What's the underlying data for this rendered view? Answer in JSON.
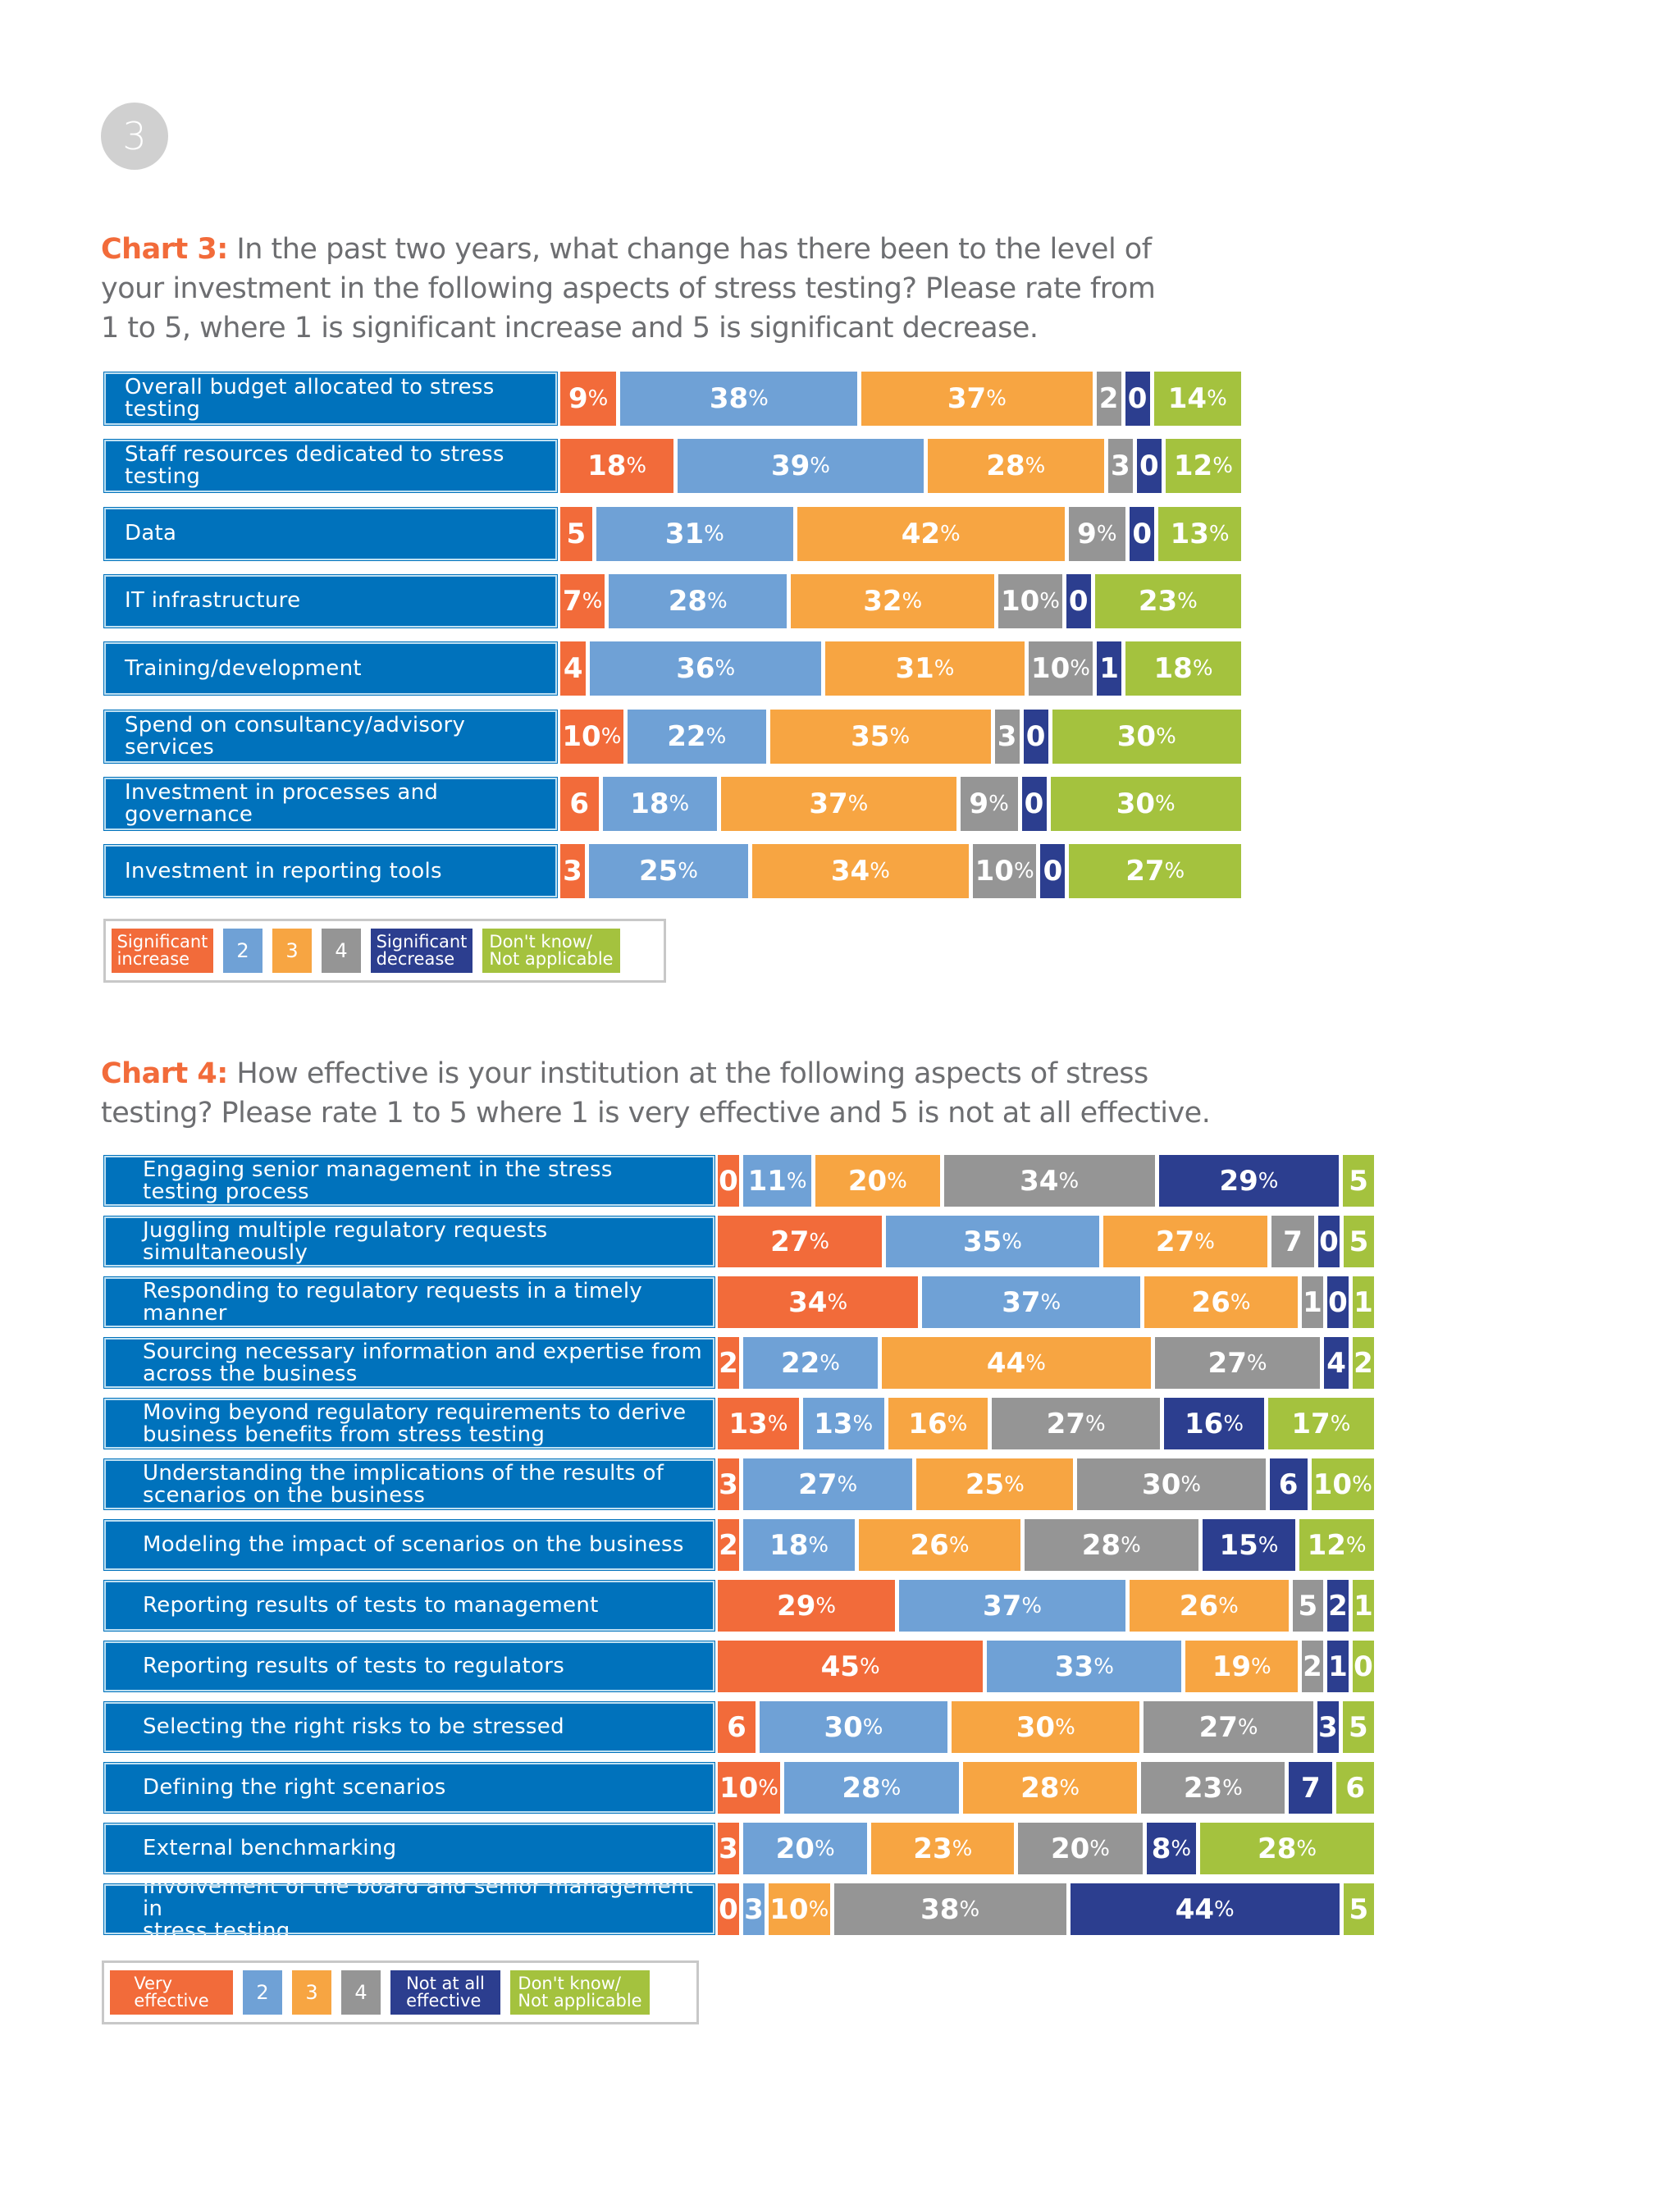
{
  "page_number": "3",
  "colors": {
    "label_bg": "#0072bc",
    "c1": "#f26b3a",
    "c2": "#6fa1d6",
    "c3": "#f7a542",
    "c4": "#959595",
    "c5": "#2c3e8f",
    "c6": "#a4c23e"
  },
  "chart_data": [
    {
      "type": "stacked-bar",
      "title_label": "Chart 3:",
      "title_line1": "In the past two years, what change has there been to the level of",
      "title_line2": "your investment in the following aspects of stress testing? Please rate from",
      "title_line3": "1 to 5, where 1 is significant increase and 5 is significant decrease.",
      "categories": [
        "Overall budget allocated to stress testing",
        "Staff resources dedicated to stress testing",
        "Data",
        "IT infrastructure",
        "Training/development",
        "Spend on consultancy/advisory services",
        "Investment in processes and governance",
        "Investment in reporting tools"
      ],
      "series": [
        {
          "name": "Significant increase",
          "values": [
            9,
            18,
            5,
            7,
            4,
            10,
            6,
            3
          ]
        },
        {
          "name": "2",
          "values": [
            38,
            39,
            31,
            28,
            36,
            22,
            18,
            25
          ]
        },
        {
          "name": "3",
          "values": [
            37,
            28,
            42,
            32,
            31,
            35,
            37,
            34
          ]
        },
        {
          "name": "4",
          "values": [
            2,
            3,
            9,
            10,
            10,
            3,
            9,
            10
          ]
        },
        {
          "name": "Significant decrease",
          "values": [
            0,
            0,
            0,
            0,
            1,
            0,
            0,
            0
          ]
        },
        {
          "name": "Don't know/ Not applicable",
          "values": [
            14,
            12,
            13,
            23,
            18,
            30,
            30,
            27
          ]
        }
      ],
      "data_labels": [
        [
          "9%",
          "38%",
          "37%",
          "2",
          "0",
          "14%"
        ],
        [
          "18%",
          "39%",
          "28%",
          "3",
          "0",
          "12%"
        ],
        [
          "5",
          "31%",
          "42%",
          "9%",
          "0",
          "13%"
        ],
        [
          "7%",
          "28%",
          "32%",
          "10%",
          "0",
          "23%"
        ],
        [
          "4",
          "36%",
          "31%",
          "10%",
          "1",
          "18%"
        ],
        [
          "10%",
          "22%",
          "35%",
          "3",
          "0",
          "30%"
        ],
        [
          "6",
          "18%",
          "37%",
          "9%",
          "0",
          "30%"
        ],
        [
          "3",
          "25%",
          "34%",
          "10%",
          "0",
          "27%"
        ]
      ],
      "legend": [
        {
          "line1": "Significant",
          "line2": "increase"
        },
        {
          "line1": "2",
          "line2": ""
        },
        {
          "line1": "3",
          "line2": ""
        },
        {
          "line1": "4",
          "line2": ""
        },
        {
          "line1": "Significant",
          "line2": "decrease"
        },
        {
          "line1": "Don't know/",
          "line2": "Not applicable"
        }
      ]
    },
    {
      "type": "stacked-bar",
      "title_label": "Chart 4:",
      "title_line1": "How effective is your institution at the following aspects of stress",
      "title_line2": "testing? Please rate 1 to 5 where 1 is very effective and 5 is not at all effective.",
      "title_line3": "",
      "categories": [
        "Engaging senior management in the stress testing process",
        "Juggling multiple regulatory requests simultaneously",
        "Responding to regulatory requests in a timely manner",
        "Sourcing necessary information and expertise from across the business",
        "Moving beyond regulatory requirements to derive business benefits from stress testing",
        "Understanding the implications of the results of scenarios on the business",
        "Modeling the impact of scenarios on the business",
        "Reporting results of tests to management",
        "Reporting results of tests to regulators",
        "Selecting the right risks to be stressed",
        "Defining the right scenarios",
        "External benchmarking",
        "Involvement of the board and senior management in stress testing"
      ],
      "category_lines": [
        [
          "Engaging senior management in the stress",
          "testing process"
        ],
        [
          "Juggling multiple regulatory requests simultaneously",
          ""
        ],
        [
          "Responding to regulatory requests in a timely manner",
          ""
        ],
        [
          "Sourcing necessary information and expertise from",
          "across the business"
        ],
        [
          "Moving beyond regulatory requirements to derive",
          "business benefits from stress testing"
        ],
        [
          "Understanding the implications of the results of",
          "scenarios on the business"
        ],
        [
          "Modeling the impact of scenarios on the business",
          ""
        ],
        [
          "Reporting results of tests to management",
          ""
        ],
        [
          "Reporting results of tests to regulators",
          ""
        ],
        [
          "Selecting the right risks to be stressed",
          ""
        ],
        [
          "Defining the right scenarios",
          ""
        ],
        [
          "External benchmarking",
          ""
        ],
        [
          "Involvement of the board and senior management in",
          "stress testing"
        ]
      ],
      "series": [
        {
          "name": "Very effective",
          "values": [
            0,
            27,
            34,
            2,
            13,
            3,
            2,
            29,
            45,
            6,
            10,
            3,
            0
          ]
        },
        {
          "name": "2",
          "values": [
            11,
            35,
            37,
            22,
            13,
            27,
            18,
            37,
            33,
            30,
            28,
            20,
            3
          ]
        },
        {
          "name": "3",
          "values": [
            20,
            27,
            26,
            44,
            16,
            25,
            26,
            26,
            19,
            30,
            28,
            23,
            10
          ]
        },
        {
          "name": "4",
          "values": [
            34,
            7,
            1,
            27,
            27,
            30,
            28,
            5,
            2,
            27,
            23,
            20,
            38
          ]
        },
        {
          "name": "Not at all effective",
          "values": [
            29,
            0,
            0,
            4,
            16,
            6,
            15,
            2,
            1,
            3,
            7,
            8,
            44
          ]
        },
        {
          "name": "Don't know/ Not applicable",
          "values": [
            5,
            5,
            1,
            2,
            17,
            10,
            12,
            1,
            0,
            5,
            6,
            28,
            5
          ]
        }
      ],
      "data_labels": [
        [
          "0",
          "11%",
          "20%",
          "34%",
          "29%",
          "5"
        ],
        [
          "27%",
          "35%",
          "27%",
          "7",
          "0",
          "5"
        ],
        [
          "34%",
          "37%",
          "26%",
          "1",
          "0",
          "1"
        ],
        [
          "2",
          "22%",
          "44%",
          "27%",
          "4",
          "2"
        ],
        [
          "13%",
          "13%",
          "16%",
          "27%",
          "16%",
          "17%"
        ],
        [
          "3",
          "27%",
          "25%",
          "30%",
          "6",
          "10%"
        ],
        [
          "2",
          "18%",
          "26%",
          "28%",
          "15%",
          "12%"
        ],
        [
          "29%",
          "37%",
          "26%",
          "5",
          "2",
          "1"
        ],
        [
          "45%",
          "33%",
          "19%",
          "2",
          "1",
          "0"
        ],
        [
          "6",
          "30%",
          "30%",
          "27%",
          "3",
          "5"
        ],
        [
          "10%",
          "28%",
          "28%",
          "23%",
          "7",
          "6"
        ],
        [
          "3",
          "20%",
          "23%",
          "20%",
          "8%",
          "28%"
        ],
        [
          "0",
          "3",
          "10%",
          "38%",
          "44%",
          "5"
        ]
      ],
      "legend": [
        {
          "line1": "Very",
          "line2": "effective"
        },
        {
          "line1": "2",
          "line2": ""
        },
        {
          "line1": "3",
          "line2": ""
        },
        {
          "line1": "4",
          "line2": ""
        },
        {
          "line1": "Not at all",
          "line2": "effective"
        },
        {
          "line1": "Don't know/",
          "line2": "Not applicable"
        }
      ]
    }
  ]
}
